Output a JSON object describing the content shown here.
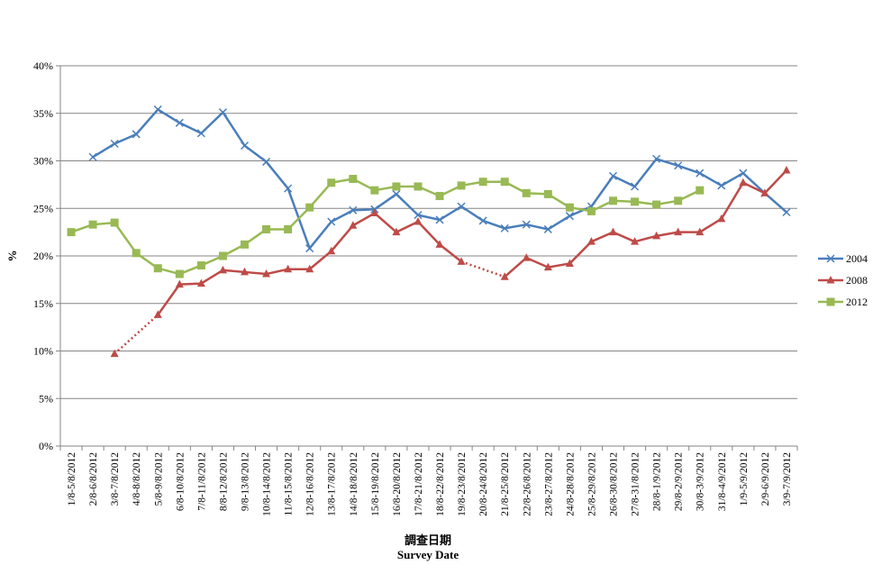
{
  "chart_data": {
    "type": "line",
    "xlabel_cn": "調查日期",
    "xlabel_en": "Survey Date",
    "ylabel": "%",
    "ylim": [
      0,
      40
    ],
    "yticks": [
      "0%",
      "5%",
      "10%",
      "15%",
      "20%",
      "25%",
      "30%",
      "35%",
      "40%"
    ],
    "grid": true,
    "legend_position": "right",
    "categories": [
      "1/8-5/8/2012",
      "2/8-6/8/2012",
      "3/8-7/8/2012",
      "4/8-8/8/2012",
      "5/8-9/8/2012",
      "6/8-10/8/2012",
      "7/8-11/8/2012",
      "8/8-12/8/2012",
      "9/8-13/8/2012",
      "10/8-14/8/2012",
      "11/8-15/8/2012",
      "12/8-16/8/2012",
      "13/8-17/8/2012",
      "14/8-18/8/2012",
      "15/8-19/8/2012",
      "16/8-20/8/2012",
      "17/8-21/8/2012",
      "18/8-22/8/2012",
      "19/8-23/8/2012",
      "20/8-24/8/2012",
      "21/8-25/8/2012",
      "22/8-26/8/2012",
      "23/8-27/8/2012",
      "24/8-28/8/2012",
      "25/8-29/8/2012",
      "26/8-30/8/2012",
      "27/8-31/8/2012",
      "28/8-1/9/2012",
      "29/8-2/9/2012",
      "30/8-3/9/2012",
      "31/8-4/9/2012",
      "1/9-5/9/2012",
      "2/9-6/9/2012",
      "3/9-7/9/2012"
    ],
    "series": [
      {
        "name": "2004",
        "color": "#4A7EBB",
        "marker": "x",
        "values": [
          null,
          30.4,
          31.8,
          32.8,
          35.4,
          34.0,
          32.9,
          35.1,
          31.6,
          29.9,
          27.1,
          20.8,
          23.6,
          24.8,
          24.9,
          26.5,
          24.3,
          23.8,
          25.2,
          23.7,
          22.9,
          23.3,
          22.8,
          24.2,
          25.2,
          28.4,
          27.3,
          30.2,
          29.5,
          28.7,
          27.4,
          28.7,
          26.6,
          24.6
        ]
      },
      {
        "name": "2008",
        "color": "#BE4B48",
        "marker": "triangle",
        "values": [
          null,
          null,
          9.7,
          null,
          13.8,
          17.0,
          17.1,
          18.5,
          18.3,
          18.1,
          18.6,
          18.6,
          20.5,
          23.2,
          24.5,
          22.5,
          23.6,
          21.2,
          19.4,
          null,
          17.8,
          19.8,
          18.8,
          19.2,
          21.5,
          22.5,
          21.5,
          22.1,
          22.5,
          22.5,
          23.9,
          27.7,
          26.6,
          29.0
        ]
      },
      {
        "name": "2012",
        "color": "#98B954",
        "marker": "square",
        "values": [
          22.5,
          23.3,
          23.5,
          20.3,
          18.7,
          18.1,
          19.0,
          20.0,
          21.2,
          22.8,
          22.8,
          25.1,
          27.7,
          28.1,
          26.9,
          27.3,
          27.3,
          26.3,
          27.4,
          27.8,
          27.8,
          26.6,
          26.5,
          25.1,
          24.7,
          25.8,
          25.7,
          25.4,
          25.8,
          26.9,
          null,
          null,
          null,
          null
        ]
      }
    ],
    "dotted_gaps": [
      {
        "series": "2008",
        "from_index": 2,
        "to_index": 4
      },
      {
        "series": "2008",
        "from_index": 18,
        "to_index": 20
      }
    ]
  }
}
